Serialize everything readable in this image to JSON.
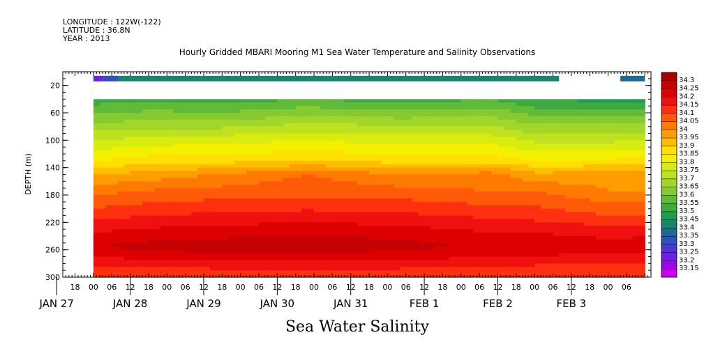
{
  "header": {
    "longitude": "LONGITUDE : 122W(-122)",
    "latitude": "LATITUDE : 36.8N",
    "year": "YEAR : 2013",
    "title": "Hourly Gridded MBARI Mooring M1 Sea Water Temperature and Salinity Observations"
  },
  "chart_data": {
    "type": "heatmap",
    "title": "Hourly Gridded MBARI Mooring M1 Sea Water Temperature and Salinity Observations",
    "xlabel": "",
    "ylabel": "DEPTH (m)",
    "caption": "Sea Water Salinity",
    "y_axis": {
      "reversed": true,
      "range": [
        0,
        300
      ],
      "ticks": [
        20,
        60,
        100,
        140,
        180,
        220,
        260,
        300
      ]
    },
    "x_axis": {
      "unit": "hours",
      "range": [
        -10,
        182
      ],
      "hour_ticks": [
        {
          "t": -6,
          "label": "18"
        },
        {
          "t": 0,
          "label": "00"
        },
        {
          "t": 6,
          "label": "06"
        },
        {
          "t": 12,
          "label": "12"
        },
        {
          "t": 18,
          "label": "18"
        },
        {
          "t": 24,
          "label": "00"
        },
        {
          "t": 30,
          "label": "06"
        },
        {
          "t": 36,
          "label": "12"
        },
        {
          "t": 42,
          "label": "18"
        },
        {
          "t": 48,
          "label": "00"
        },
        {
          "t": 54,
          "label": "06"
        },
        {
          "t": 60,
          "label": "12"
        },
        {
          "t": 66,
          "label": "18"
        },
        {
          "t": 72,
          "label": "00"
        },
        {
          "t": 78,
          "label": "06"
        },
        {
          "t": 84,
          "label": "12"
        },
        {
          "t": 90,
          "label": "18"
        },
        {
          "t": 96,
          "label": "00"
        },
        {
          "t": 102,
          "label": "06"
        },
        {
          "t": 108,
          "label": "12"
        },
        {
          "t": 114,
          "label": "18"
        },
        {
          "t": 120,
          "label": "00"
        },
        {
          "t": 126,
          "label": "06"
        },
        {
          "t": 132,
          "label": "12"
        },
        {
          "t": 138,
          "label": "18"
        },
        {
          "t": 144,
          "label": "00"
        },
        {
          "t": 150,
          "label": "06"
        },
        {
          "t": 156,
          "label": "12"
        },
        {
          "t": 162,
          "label": "18"
        },
        {
          "t": 168,
          "label": "00"
        },
        {
          "t": 174,
          "label": "06"
        }
      ],
      "date_labels": [
        {
          "t": -12,
          "label": "JAN 27"
        },
        {
          "t": 12,
          "label": "JAN 28"
        },
        {
          "t": 36,
          "label": "JAN 29"
        },
        {
          "t": 60,
          "label": "JAN 30"
        },
        {
          "t": 84,
          "label": "JAN 31"
        },
        {
          "t": 108,
          "label": "FEB  1"
        },
        {
          "t": 132,
          "label": "FEB  2"
        },
        {
          "t": 156,
          "label": "FEB  3"
        }
      ]
    },
    "colorbar": {
      "levels": [
        33.15,
        33.2,
        33.25,
        33.3,
        33.35,
        33.4,
        33.45,
        33.5,
        33.55,
        33.6,
        33.65,
        33.7,
        33.75,
        33.8,
        33.85,
        33.9,
        33.95,
        34,
        34.05,
        34.1,
        34.15,
        34.2,
        34.25,
        34.3
      ],
      "labels": [
        "34.3",
        "34.25",
        "34.2",
        "34.15",
        "34.1",
        "34.05",
        "34",
        "33.95",
        "33.9",
        "33.85",
        "33.8",
        "33.75",
        "33.7",
        "33.65",
        "33.6",
        "33.55",
        "33.5",
        "33.45",
        "33.4",
        "33.35",
        "33.3",
        "33.25",
        "33.2",
        "33.15"
      ],
      "colors": [
        "#aa0000",
        "#c40000",
        "#dc0000",
        "#f01010",
        "#ff3010",
        "#ff5a08",
        "#ff7a00",
        "#ff9c00",
        "#ffbe00",
        "#ffe000",
        "#f4f000",
        "#d8ec10",
        "#bee220",
        "#a2d628",
        "#84ca30",
        "#60bc38",
        "#3caa40",
        "#209c4c",
        "#18866c",
        "#1e6a94",
        "#3050bc",
        "#4a38d4",
        "#7020e0",
        "#a000ec",
        "#cc00f0"
      ]
    },
    "surface_bar": {
      "depth": 10,
      "segments": [
        {
          "t_start": 0,
          "t_end": 3,
          "salinity": 33.22
        },
        {
          "t_start": 3,
          "t_end": 8,
          "salinity": 33.32
        },
        {
          "t_start": 8,
          "t_end": 152,
          "salinity": 33.43
        },
        {
          "t_start": 172,
          "t_end": 180,
          "salinity": 33.37
        }
      ]
    },
    "profile": {
      "depths": [
        40,
        70,
        100,
        130,
        150,
        175,
        210,
        235,
        255,
        270,
        290
      ],
      "columns": [
        {
          "t": 0,
          "s": [
            33.52,
            33.63,
            33.75,
            33.85,
            33.95,
            34.03,
            34.13,
            34.2,
            34.25,
            34.2,
            34.12
          ]
        },
        {
          "t": 20,
          "s": [
            33.54,
            33.65,
            33.77,
            33.88,
            33.97,
            34.06,
            34.15,
            34.22,
            34.27,
            34.22,
            34.13
          ]
        },
        {
          "t": 40,
          "s": [
            33.52,
            33.64,
            33.78,
            33.88,
            34.0,
            34.07,
            34.16,
            34.23,
            34.28,
            34.23,
            34.14
          ]
        },
        {
          "t": 70,
          "s": [
            33.55,
            33.68,
            33.8,
            33.9,
            34.05,
            34.08,
            34.17,
            34.24,
            34.29,
            34.23,
            34.15
          ]
        },
        {
          "t": 100,
          "s": [
            33.52,
            33.66,
            33.78,
            33.88,
            34.0,
            34.07,
            34.16,
            34.23,
            34.27,
            34.22,
            34.14
          ]
        },
        {
          "t": 130,
          "s": [
            33.55,
            33.67,
            33.78,
            33.88,
            34.02,
            34.05,
            34.14,
            34.2,
            34.24,
            34.2,
            34.12
          ]
        },
        {
          "t": 144,
          "s": [
            33.5,
            33.62,
            33.74,
            33.85,
            33.96,
            34.05,
            34.13,
            34.2,
            34.24,
            34.2,
            34.12
          ]
        },
        {
          "t": 170,
          "s": [
            33.48,
            33.62,
            33.74,
            33.86,
            33.98,
            34.0,
            34.1,
            34.18,
            34.22,
            34.18,
            34.1
          ]
        },
        {
          "t": 180,
          "s": [
            33.48,
            33.62,
            33.74,
            33.86,
            33.98,
            34.0,
            34.1,
            34.18,
            34.24,
            34.18,
            34.1
          ]
        }
      ]
    },
    "x_label_bottom": "Sea Water Salinity"
  }
}
